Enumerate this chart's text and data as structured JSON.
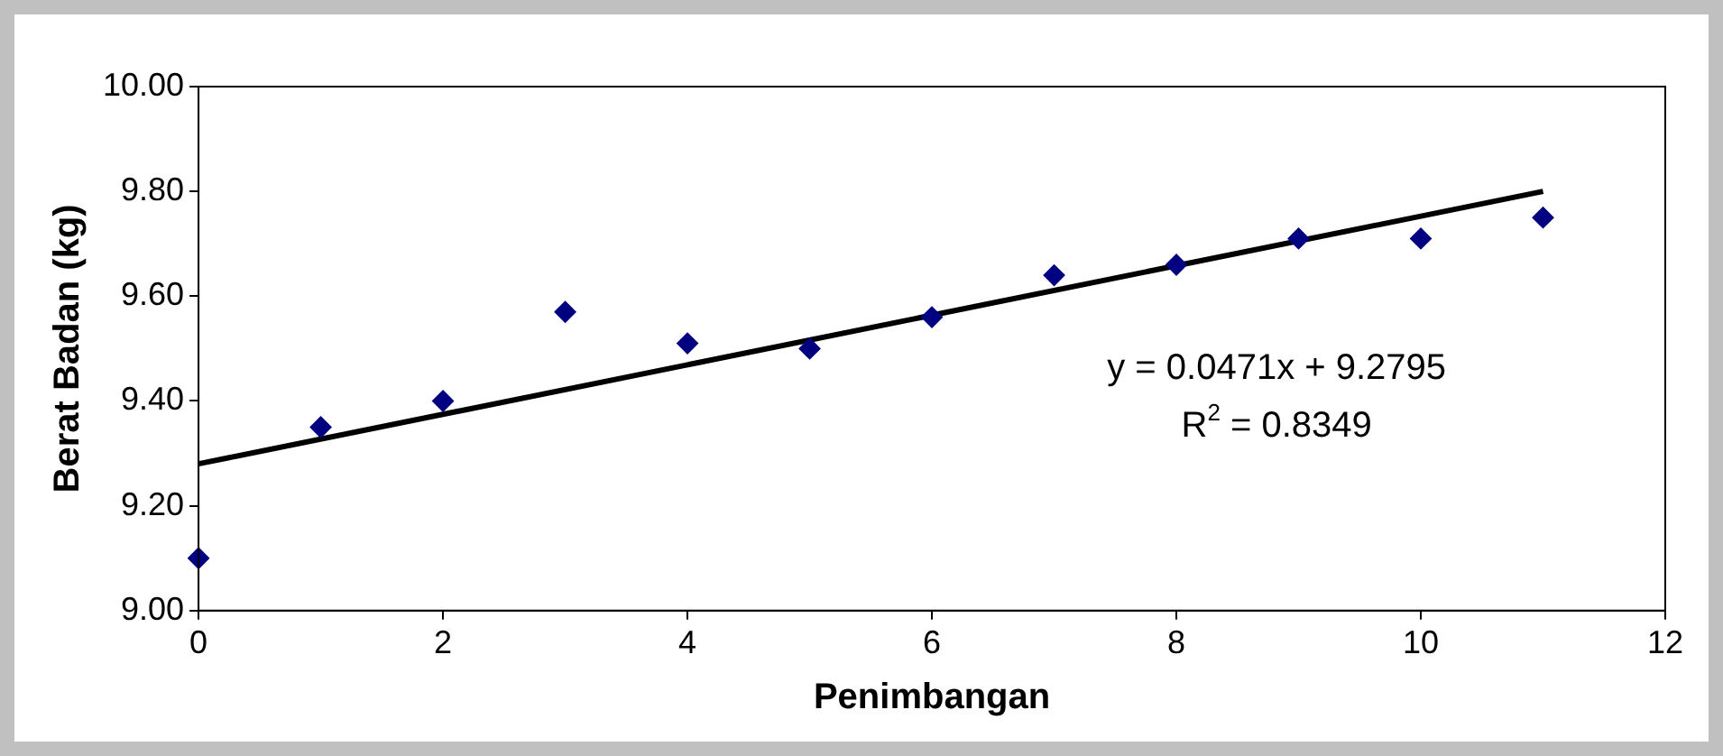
{
  "chart_data": {
    "type": "scatter",
    "xlabel": "Penimbangan",
    "ylabel": "Berat Badan (kg)",
    "xlim": [
      0,
      12
    ],
    "xticks": [
      0,
      2,
      4,
      6,
      8,
      10,
      12
    ],
    "ylim": [
      9.0,
      10.0
    ],
    "yticks": [
      {
        "value": 9.0,
        "label": "9.00"
      },
      {
        "value": 9.2,
        "label": "9.20"
      },
      {
        "value": 9.4,
        "label": "9.40"
      },
      {
        "value": 9.6,
        "label": "9.60"
      },
      {
        "value": 9.8,
        "label": "9.80"
      },
      {
        "value": 10.0,
        "label": "10.00"
      }
    ],
    "grid": false,
    "legend": false,
    "marker": "diamond",
    "series": [
      {
        "type": "scatter",
        "color": "#000080",
        "x": [
          0,
          1,
          2,
          3,
          4,
          5,
          6,
          7,
          8,
          9,
          10,
          11
        ],
        "values": [
          9.1,
          9.35,
          9.4,
          9.57,
          9.51,
          9.5,
          9.56,
          9.64,
          9.66,
          9.71,
          9.71,
          9.75
        ]
      },
      {
        "type": "line",
        "color": "#000000",
        "marker": "none",
        "line_style": "solid",
        "x": [
          0,
          11
        ],
        "values": [
          9.28,
          9.8
        ]
      }
    ],
    "annotations": [
      "y = 0.0471x + 9.2795",
      "R$^{2}$ = 0.8349"
    ]
  }
}
